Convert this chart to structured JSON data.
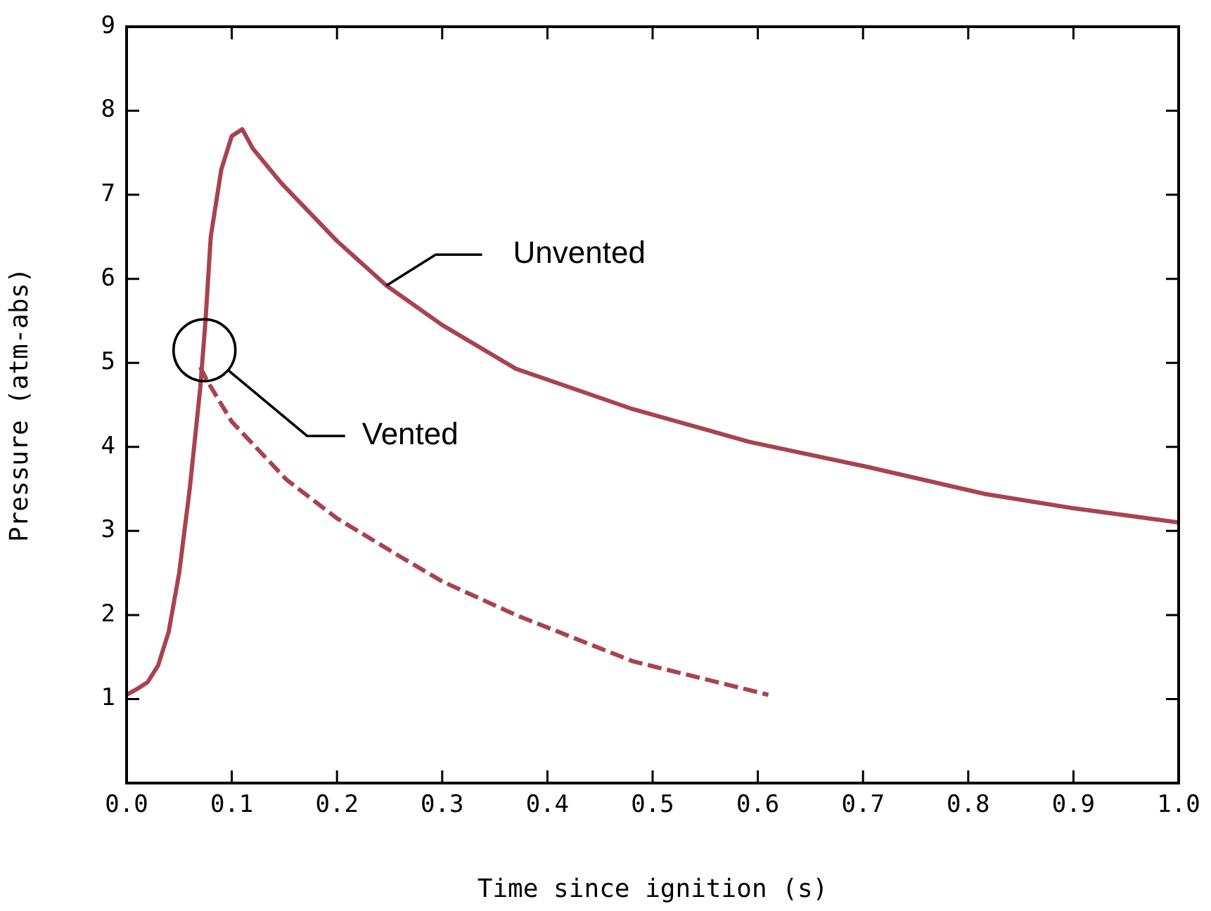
{
  "chart_data": {
    "type": "line",
    "xlabel": "Time since ignition (s)",
    "ylabel": "Pressure (atm-abs)",
    "xlim": [
      0,
      1
    ],
    "ylim": [
      0,
      9
    ],
    "xticks": [
      {
        "value": 0,
        "label": "0.0"
      },
      {
        "value": 0.1,
        "label": "0.1"
      },
      {
        "value": 0.2,
        "label": "0.2"
      },
      {
        "value": 0.3,
        "label": "0.3"
      },
      {
        "value": 0.4,
        "label": "0.4"
      },
      {
        "value": 0.5,
        "label": "0.5"
      },
      {
        "value": 0.6,
        "label": "0.6"
      },
      {
        "value": 0.7,
        "label": "0.7"
      },
      {
        "value": 0.8,
        "label": "0.8"
      },
      {
        "value": 0.9,
        "label": "0.9"
      },
      {
        "value": 1,
        "label": "1.0"
      }
    ],
    "yticks": [
      1,
      2,
      3,
      4,
      5,
      6,
      7,
      8,
      9
    ],
    "grid": false,
    "legend": false,
    "marker": "none",
    "series": [
      {
        "color": "#a8434f",
        "line_style": "solid",
        "x": [
          0,
          0.01,
          0.02,
          0.03,
          0.04,
          0.05,
          0.06,
          0.07,
          0.075,
          0.08,
          0.09,
          0.1,
          0.11,
          0.12,
          0.147,
          0.2,
          0.247,
          0.3,
          0.37,
          0.481,
          0.592,
          0.705,
          0.816,
          0.9,
          1
        ],
        "values": [
          1.05,
          1.12,
          1.2,
          1.4,
          1.8,
          2.5,
          3.5,
          4.7,
          5.5,
          6.5,
          7.3,
          7.7,
          7.78,
          7.55,
          7.14,
          6.45,
          5.92,
          5.45,
          4.93,
          4.45,
          4.06,
          3.76,
          3.44,
          3.27,
          3.1
        ]
      },
      {
        "color": "#a8434f",
        "line_style": "dashed",
        "x": [
          0.07,
          0.076,
          0.1,
          0.152,
          0.2,
          0.258,
          0.3,
          0.37,
          0.481,
          0.61
        ],
        "values": [
          4.95,
          4.8,
          4.3,
          3.61,
          3.15,
          2.71,
          2.4,
          2.0,
          1.45,
          1.05
        ]
      }
    ],
    "annotations": [
      {
        "text": "Unvented",
        "x": 0.247,
        "y": 5.92
      },
      "Vented"
    ]
  }
}
